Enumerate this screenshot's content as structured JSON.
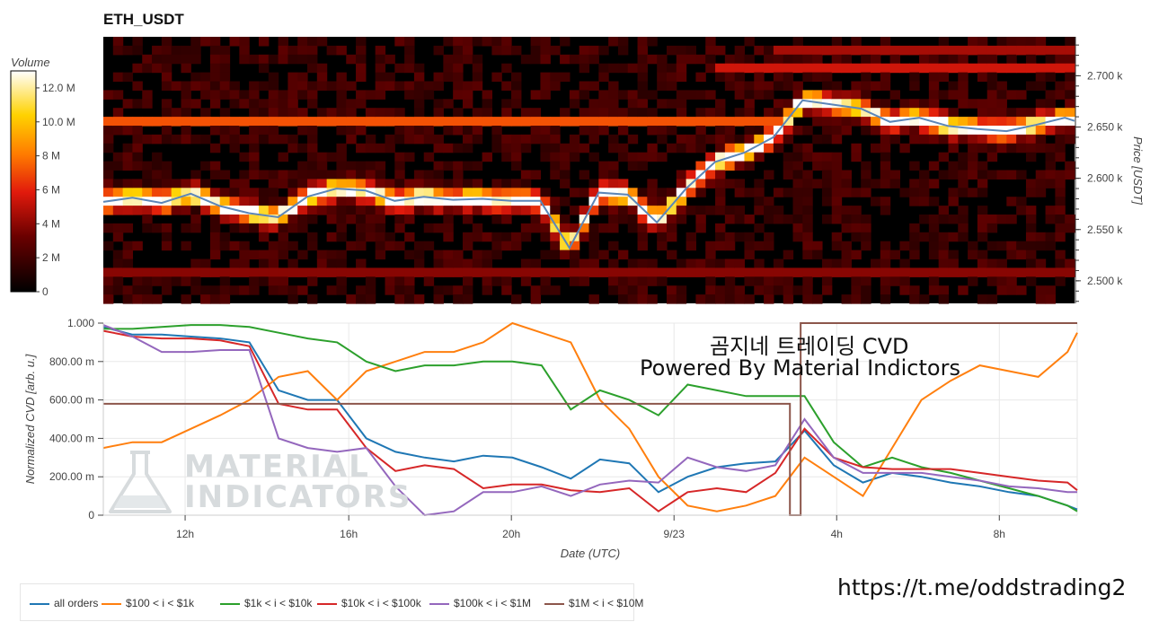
{
  "title": "ETH_USDT",
  "colorbar": {
    "title": "Volume",
    "ticks": [
      "12.0 M",
      "10.0 M",
      "8 M",
      "6 M",
      "4 M",
      "2 M",
      "0"
    ]
  },
  "overlay_text": {
    "line1": "곰지네 트레이딩 CVD",
    "line2": "Powered By Material Indictors",
    "telegram": "https://t.me/oddstrading2"
  },
  "watermark": {
    "line1": "MATERIAL",
    "line2": "INDICATORS"
  },
  "chart_data": [
    {
      "type": "heatmap",
      "title": "ETH_USDT",
      "ylabel": "Price [USDT]",
      "ytick_labels": [
        "2.700 k",
        "2.650 k",
        "2.600 k",
        "2.550 k",
        "2.500 k"
      ],
      "ylim": [
        2478,
        2738
      ],
      "colorbar_label": "Volume",
      "colorbar_range": [
        0,
        13000000
      ],
      "price_series": {
        "x": [
          0,
          3,
          6,
          9,
          12,
          15,
          18,
          21,
          24,
          27,
          30,
          33,
          36,
          39,
          42,
          45,
          48,
          51,
          54,
          57,
          60,
          63,
          66,
          69,
          72,
          75,
          78,
          81,
          84,
          87,
          90,
          93,
          96,
          99,
          100
        ],
        "y": [
          2577,
          2581,
          2576,
          2585,
          2573,
          2566,
          2562,
          2582,
          2590,
          2588,
          2578,
          2582,
          2579,
          2580,
          2578,
          2578,
          2532,
          2586,
          2584,
          2557,
          2590,
          2616,
          2625,
          2640,
          2676,
          2672,
          2668,
          2655,
          2659,
          2651,
          2648,
          2646,
          2652,
          2659,
          2656
        ]
      }
    },
    {
      "type": "line",
      "xlabel": "Date (UTC)",
      "ylabel": "Normalized CVD [arb. u.]",
      "x_tick_labels": [
        "12h",
        "16h",
        "20h",
        "9/23",
        "4h",
        "8h"
      ],
      "y_tick_labels": [
        "1.000",
        "800.00 m",
        "600.00 m",
        "400.00 m",
        "200.00 m",
        "0"
      ],
      "ylim": [
        0,
        1
      ],
      "x": [
        0,
        3,
        6,
        9,
        12,
        15,
        18,
        21,
        24,
        27,
        30,
        33,
        36,
        39,
        42,
        45,
        48,
        51,
        54,
        57,
        60,
        63,
        66,
        69,
        72,
        75,
        78,
        81,
        84,
        87,
        90,
        93,
        96,
        99,
        100
      ],
      "series": [
        {
          "name": "all orders",
          "color": "#1f77b4",
          "values": [
            0.98,
            0.94,
            0.94,
            0.93,
            0.92,
            0.9,
            0.65,
            0.6,
            0.6,
            0.4,
            0.33,
            0.3,
            0.28,
            0.31,
            0.3,
            0.25,
            0.19,
            0.29,
            0.27,
            0.12,
            0.2,
            0.25,
            0.27,
            0.28,
            0.44,
            0.26,
            0.17,
            0.22,
            0.2,
            0.17,
            0.15,
            0.12,
            0.1,
            0.05,
            0.03
          ]
        },
        {
          "name": "$100 < i < $1k",
          "color": "#ff7f0e",
          "values": [
            0.35,
            0.38,
            0.38,
            0.45,
            0.52,
            0.6,
            0.72,
            0.75,
            0.6,
            0.75,
            0.8,
            0.85,
            0.85,
            0.9,
            1.0,
            0.95,
            0.9,
            0.6,
            0.45,
            0.2,
            0.05,
            0.02,
            0.05,
            0.1,
            0.3,
            0.2,
            0.1,
            0.35,
            0.6,
            0.7,
            0.78,
            0.75,
            0.72,
            0.85,
            0.95
          ]
        },
        {
          "name": "$1k < i < $10k",
          "color": "#2ca02c",
          "values": [
            0.97,
            0.97,
            0.98,
            0.99,
            0.99,
            0.98,
            0.95,
            0.92,
            0.9,
            0.8,
            0.75,
            0.78,
            0.78,
            0.8,
            0.8,
            0.78,
            0.55,
            0.65,
            0.6,
            0.52,
            0.68,
            0.65,
            0.62,
            0.62,
            0.62,
            0.38,
            0.25,
            0.3,
            0.25,
            0.22,
            0.18,
            0.14,
            0.1,
            0.05,
            0.02
          ]
        },
        {
          "name": "$10k < i < $100k",
          "color": "#d62728",
          "values": [
            0.96,
            0.93,
            0.92,
            0.92,
            0.91,
            0.88,
            0.58,
            0.55,
            0.55,
            0.35,
            0.23,
            0.26,
            0.24,
            0.14,
            0.16,
            0.16,
            0.13,
            0.12,
            0.14,
            0.02,
            0.12,
            0.14,
            0.12,
            0.22,
            0.45,
            0.3,
            0.25,
            0.24,
            0.24,
            0.24,
            0.22,
            0.2,
            0.18,
            0.17,
            0.13
          ]
        },
        {
          "name": "$100k < i < $1M",
          "color": "#9467bd",
          "values": [
            0.99,
            0.93,
            0.85,
            0.85,
            0.86,
            0.86,
            0.4,
            0.35,
            0.33,
            0.35,
            0.15,
            0.0,
            0.02,
            0.12,
            0.12,
            0.15,
            0.1,
            0.16,
            0.18,
            0.17,
            0.3,
            0.25,
            0.23,
            0.26,
            0.5,
            0.3,
            0.22,
            0.22,
            0.22,
            0.2,
            0.18,
            0.15,
            0.14,
            0.12,
            0.12
          ]
        },
        {
          "name": "$1M < i < $10M",
          "color": "#8c564b",
          "values": [
            0.58,
            0.58,
            0.58,
            0.58,
            0.58,
            0.58,
            0.58,
            0.58,
            0.58,
            0.58,
            0.58,
            0.58,
            0.58,
            0.58,
            0.58,
            0.58,
            0.58,
            0.58,
            0.58,
            0.58,
            0.58,
            0.58,
            0.58,
            0.58,
            1.0,
            1.0,
            1.0,
            1.0,
            1.0,
            1.0,
            1.0,
            1.0,
            1.0,
            1.0,
            1.0
          ]
        }
      ]
    }
  ]
}
